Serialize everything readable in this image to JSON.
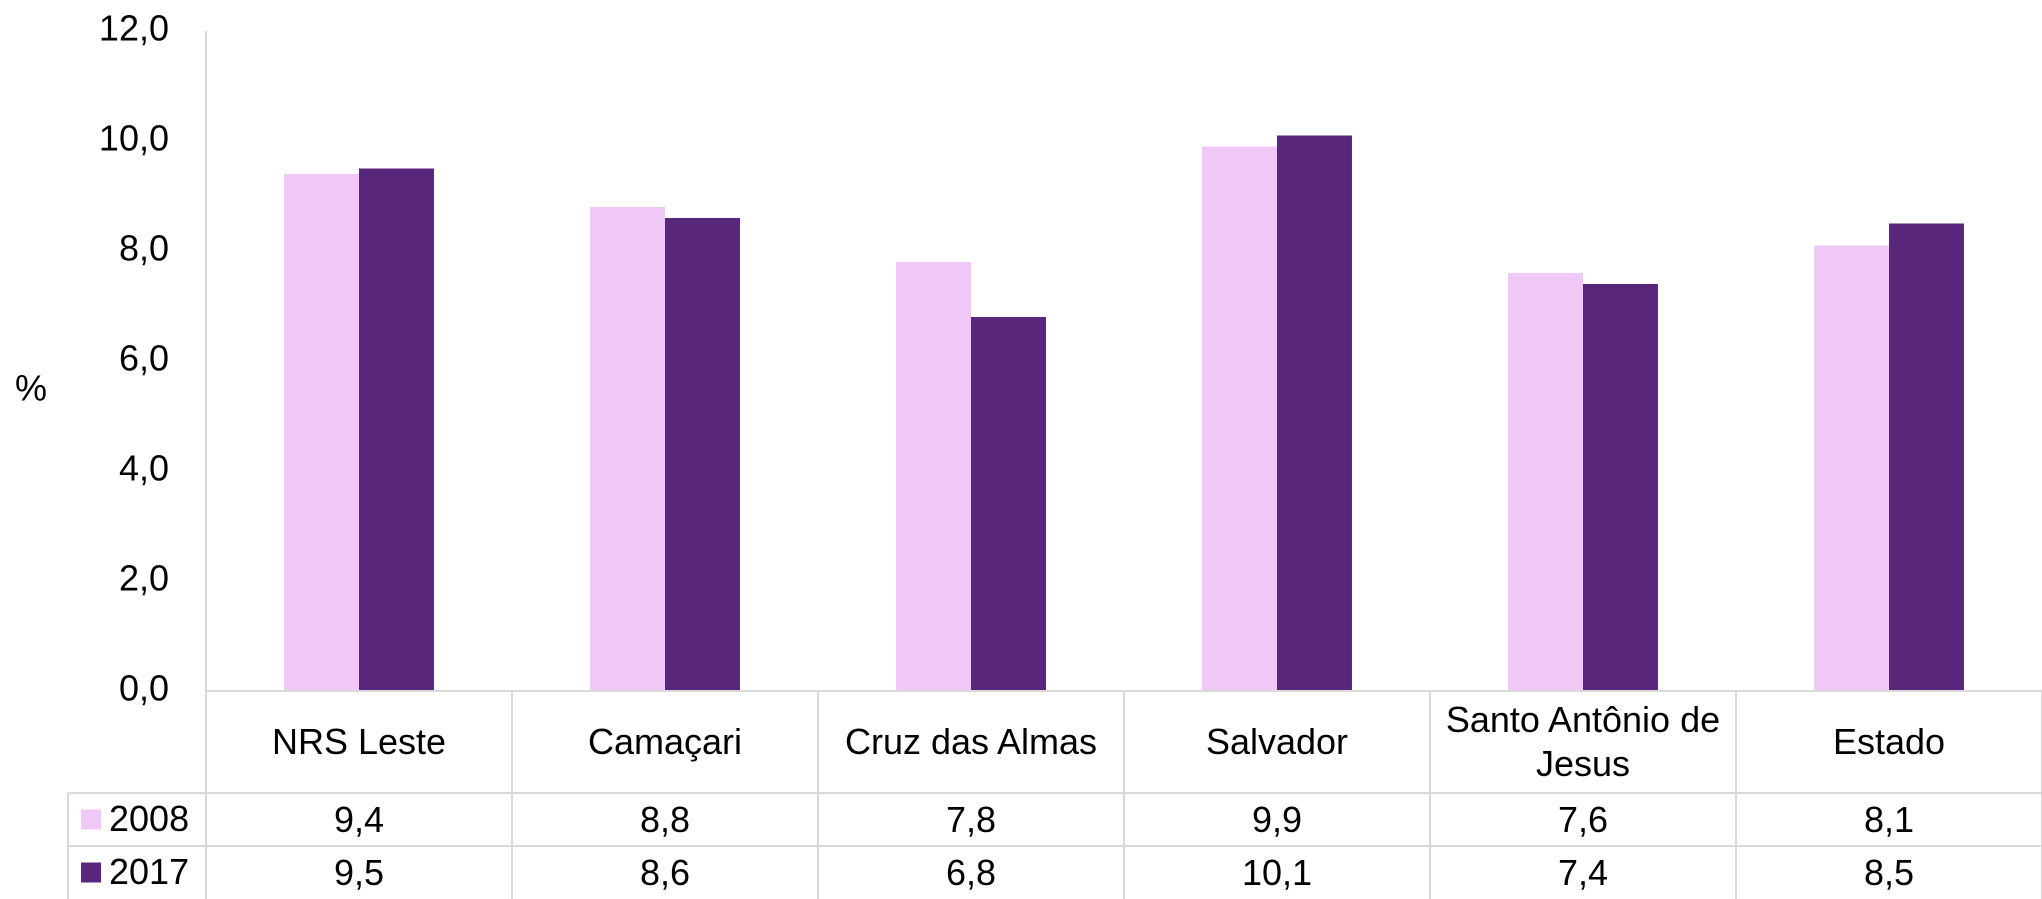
{
  "chart_data": {
    "type": "bar",
    "y_label": "%",
    "categories": [
      "NRS Leste",
      "Camaçari",
      "Cruz das Almas",
      "Salvador",
      "Santo Antônio de Jesus",
      "Estado"
    ],
    "series": [
      {
        "name": "2008",
        "color": "#efc8f8",
        "values": [
          9.4,
          8.8,
          7.8,
          9.9,
          7.6,
          8.1
        ],
        "value_labels": [
          "9,4",
          "8,8",
          "7,8",
          "9,9",
          "7,6",
          "8,1"
        ]
      },
      {
        "name": "2017",
        "color": "#58267a",
        "values": [
          9.5,
          8.6,
          6.8,
          10.1,
          7.4,
          8.5
        ],
        "value_labels": [
          "9,5",
          "8,6",
          "6,8",
          "10,1",
          "7,4",
          "8,5"
        ]
      }
    ],
    "ylim": [
      0,
      12
    ],
    "yticks": [
      {
        "value": 0,
        "label": "0,0"
      },
      {
        "value": 2,
        "label": "2,0"
      },
      {
        "value": 4,
        "label": "4,0"
      },
      {
        "value": 6,
        "label": "6,0"
      },
      {
        "value": 8,
        "label": "8,0"
      },
      {
        "value": 10,
        "label": "10,0"
      },
      {
        "value": 12,
        "label": "12,0"
      }
    ],
    "grid": false,
    "data_table": true
  }
}
